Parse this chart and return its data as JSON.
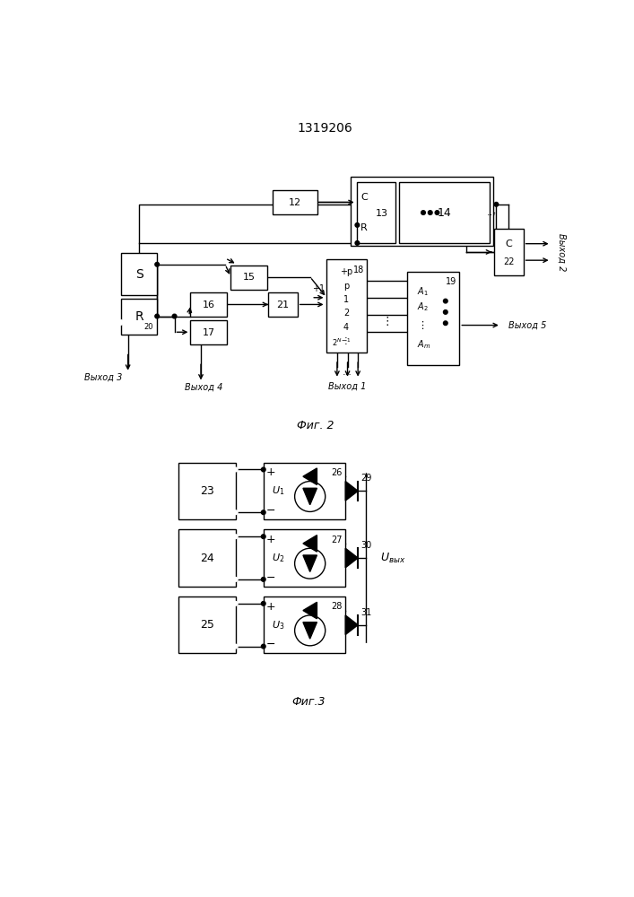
{
  "title": "1319206",
  "fig2_label": "Фиг. 2",
  "fig3_label": "Фиг.3",
  "bg_color": "#ffffff",
  "lc": "#000000",
  "lw": 1.0
}
